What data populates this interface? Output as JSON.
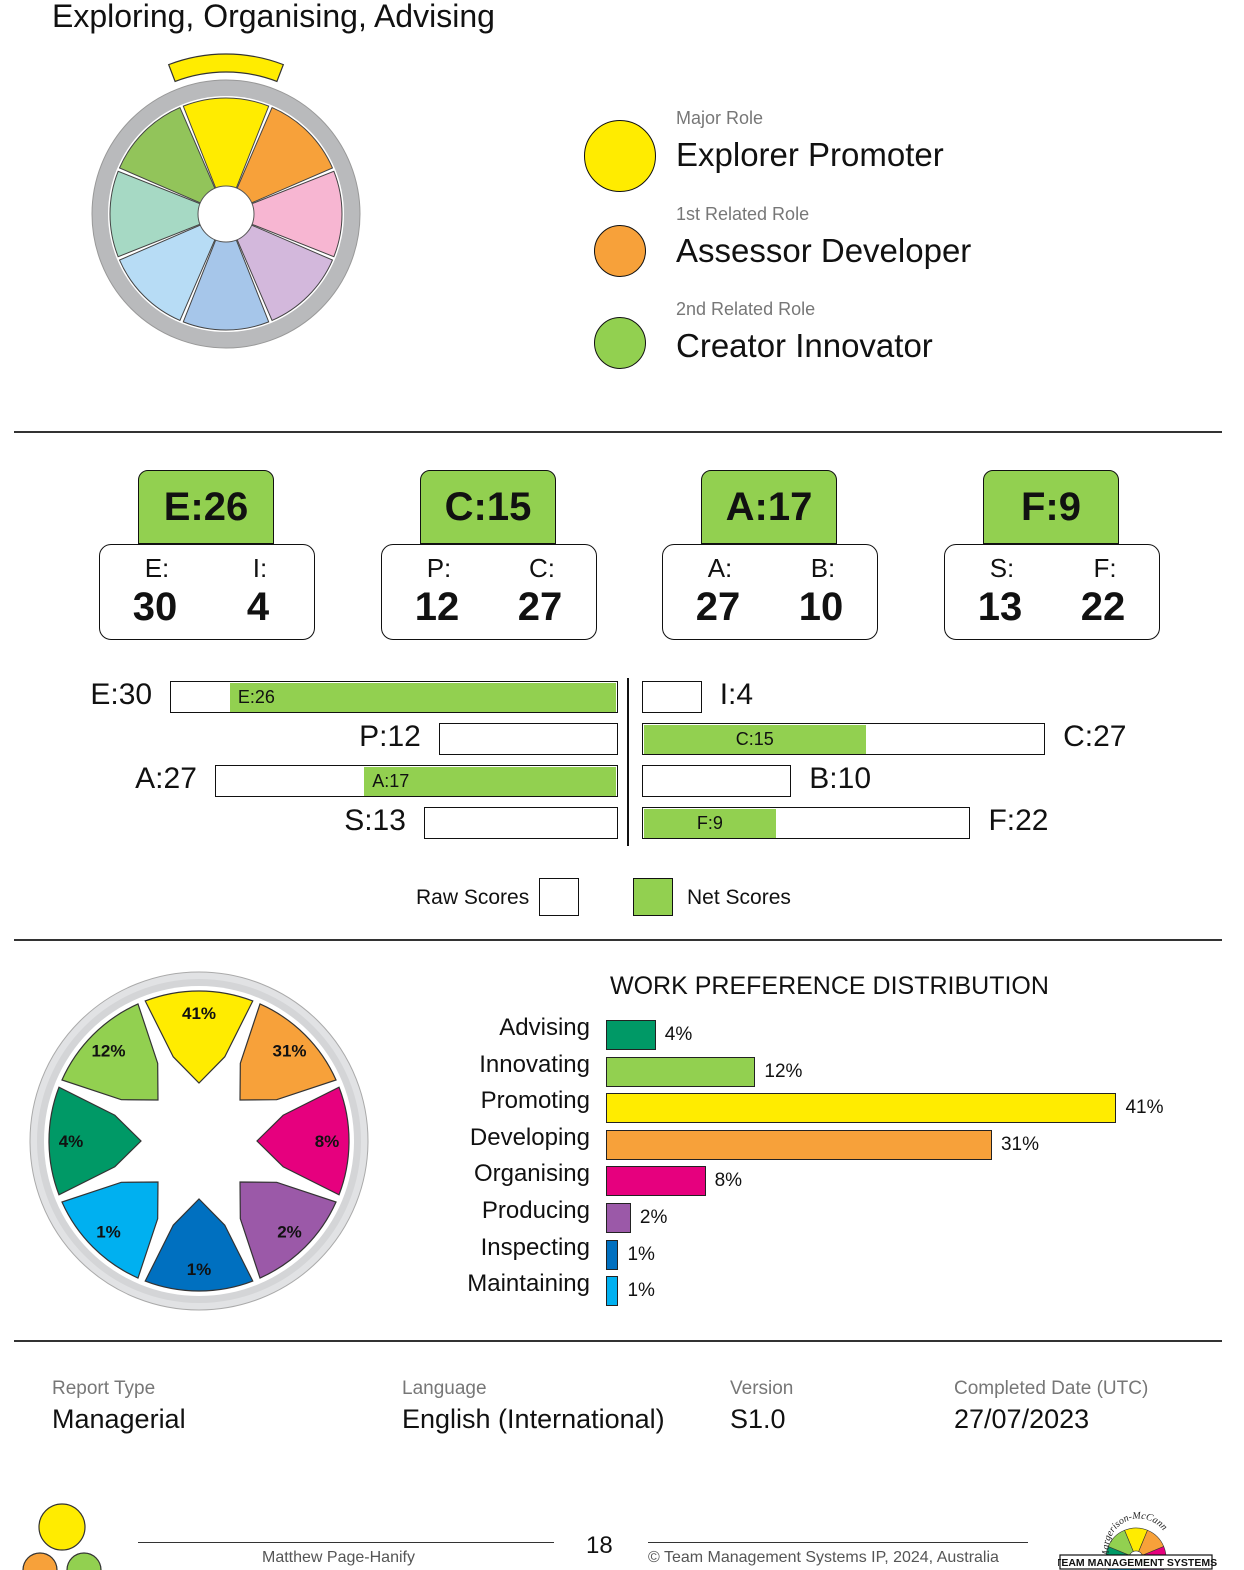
{
  "title": "Exploring, Organising, Advising",
  "roles": [
    {
      "caption": "Major Role",
      "name": "Explorer Promoter",
      "color": "#ffec00"
    },
    {
      "caption": "1st Related Role",
      "name": "Assessor Developer",
      "color": "#f7a13a"
    },
    {
      "caption": "2nd Related Role",
      "name": "Creator Innovator",
      "color": "#92d050"
    }
  ],
  "wheel_colors": [
    "#ffec00",
    "#f7a13a",
    "#f7b6d2",
    "#d3b8dc",
    "#a6c6ea",
    "#b7dcf5",
    "#a6d9c4",
    "#92c45a"
  ],
  "scores": [
    {
      "net": "E:26",
      "left_label": "E:",
      "left_value": "30",
      "right_label": "I:",
      "right_value": "4"
    },
    {
      "net": "C:15",
      "left_label": "P:",
      "left_value": "12",
      "right_label": "C:",
      "right_value": "27"
    },
    {
      "net": "A:17",
      "left_label": "A:",
      "left_value": "27",
      "right_label": "B:",
      "right_value": "10"
    },
    {
      "net": "F:9",
      "left_label": "S:",
      "left_value": "13",
      "right_label": "F:",
      "right_value": "22"
    }
  ],
  "bars": [
    {
      "left_label": "E:30",
      "left_raw": 30,
      "right_label": "I:4",
      "right_raw": 4,
      "net_label": "E:26",
      "net_value": 26,
      "net_side": "left"
    },
    {
      "left_label": "P:12",
      "left_raw": 12,
      "right_label": "C:27",
      "right_raw": 27,
      "net_label": "C:15",
      "net_value": 15,
      "net_side": "right"
    },
    {
      "left_label": "A:27",
      "left_raw": 27,
      "right_label": "B:10",
      "right_raw": 10,
      "net_label": "A:17",
      "net_value": 17,
      "net_side": "left"
    },
    {
      "left_label": "S:13",
      "left_raw": 13,
      "right_label": "F:22",
      "right_raw": 22,
      "net_label": "F:9",
      "net_value": 9,
      "net_side": "right"
    }
  ],
  "legend": {
    "raw": "Raw Scores",
    "net": "Net Scores",
    "net_color": "#92d050"
  },
  "work_pref": {
    "title": "WORK PREFERENCE DISTRIBUTION",
    "items": [
      {
        "label": "Advising",
        "value": 4,
        "pct": "4%",
        "color": "#009966"
      },
      {
        "label": "Innovating",
        "value": 12,
        "pct": "12%",
        "color": "#92d050"
      },
      {
        "label": "Promoting",
        "value": 41,
        "pct": "41%",
        "color": "#ffec00"
      },
      {
        "label": "Developing",
        "value": 31,
        "pct": "31%",
        "color": "#f7a13a"
      },
      {
        "label": "Organising",
        "value": 8,
        "pct": "8%",
        "color": "#e6007e"
      },
      {
        "label": "Producing",
        "value": 2,
        "pct": "2%",
        "color": "#9b59a8"
      },
      {
        "label": "Inspecting",
        "value": 1,
        "pct": "1%",
        "color": "#0070c0"
      },
      {
        "label": "Maintaining",
        "value": 1,
        "pct": "1%",
        "color": "#00b0f0"
      }
    ],
    "wheel_labels": [
      "41%",
      "31%",
      "8%",
      "2%",
      "1%",
      "1%",
      "4%",
      "12%"
    ],
    "wheel_colors": [
      "#ffec00",
      "#f7a13a",
      "#e6007e",
      "#9b59a8",
      "#0070c0",
      "#00b0f0",
      "#009966",
      "#92d050"
    ]
  },
  "info": {
    "report_type_label": "Report Type",
    "report_type": "Managerial",
    "language_label": "Language",
    "language": "English (International)",
    "version_label": "Version",
    "version": "S1.0",
    "completed_label": "Completed Date (UTC)",
    "completed": "27/07/2023"
  },
  "footer": {
    "name": "Matthew Page-Hanify",
    "page": "18",
    "copyright": "© Team Management Systems IP, 2024, Australia",
    "logo_text": "TEAM MANAGEMENT SYSTEMS",
    "logo_arc": "Margerison-McCann"
  }
}
